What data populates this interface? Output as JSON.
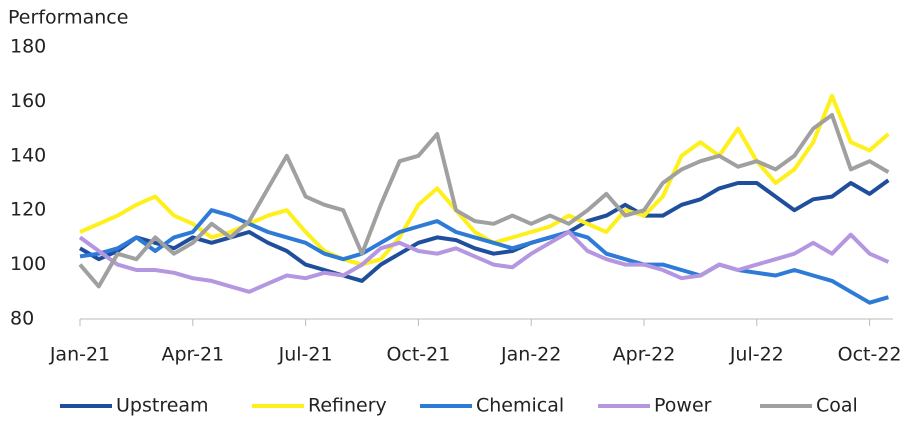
{
  "chart_data": {
    "type": "line",
    "y_label": "Performance",
    "categories": [
      "Jan-21",
      null,
      null,
      null,
      null,
      null,
      "Apr-21",
      null,
      null,
      null,
      null,
      null,
      "Jul-21",
      null,
      null,
      null,
      null,
      null,
      "Oct-21",
      null,
      null,
      null,
      null,
      null,
      "Jan-22",
      null,
      null,
      null,
      null,
      null,
      "Apr-22",
      null,
      null,
      null,
      null,
      null,
      "Jul-22",
      null,
      null,
      null,
      null,
      null,
      "Oct-22",
      null
    ],
    "ylim": [
      80,
      180
    ],
    "yticks": [
      80,
      100,
      120,
      140,
      160,
      180
    ],
    "grid": false,
    "legend": "bottom",
    "series": [
      {
        "name": "Upstream",
        "color": "#1f4e9c",
        "values": [
          106,
          102,
          105,
          110,
          108,
          106,
          110,
          108,
          110,
          112,
          108,
          105,
          100,
          98,
          96,
          94,
          100,
          104,
          108,
          110,
          109,
          106,
          104,
          105,
          108,
          110,
          112,
          116,
          118,
          122,
          118,
          118,
          122,
          124,
          128,
          130,
          130,
          125,
          120,
          124,
          125,
          130,
          126,
          131
        ]
      },
      {
        "name": "Refinery",
        "color": "#ffef1a",
        "values": [
          112,
          115,
          118,
          122,
          125,
          118,
          115,
          110,
          112,
          115,
          118,
          120,
          112,
          105,
          102,
          100,
          102,
          110,
          122,
          128,
          120,
          112,
          108,
          110,
          112,
          114,
          118,
          115,
          112,
          120,
          118,
          125,
          140,
          145,
          140,
          150,
          138,
          130,
          135,
          145,
          162,
          145,
          142,
          148
        ]
      },
      {
        "name": "Chemical",
        "color": "#2d7bd6",
        "values": [
          103,
          104,
          106,
          110,
          105,
          110,
          112,
          120,
          118,
          115,
          112,
          110,
          108,
          104,
          102,
          104,
          108,
          112,
          114,
          116,
          112,
          110,
          108,
          106,
          108,
          110,
          112,
          110,
          104,
          102,
          100,
          100,
          98,
          96,
          100,
          98,
          97,
          96,
          98,
          96,
          94,
          90,
          86,
          88
        ]
      },
      {
        "name": "Power",
        "color": "#b596e0",
        "values": [
          110,
          105,
          100,
          98,
          98,
          97,
          95,
          94,
          92,
          90,
          93,
          96,
          95,
          97,
          96,
          100,
          106,
          108,
          105,
          104,
          106,
          103,
          100,
          99,
          104,
          108,
          112,
          105,
          102,
          100,
          100,
          98,
          95,
          96,
          100,
          98,
          100,
          102,
          104,
          108,
          104,
          111,
          104,
          101
        ]
      },
      {
        "name": "Coal",
        "color": "#a0a0a0",
        "values": [
          100,
          92,
          104,
          102,
          110,
          104,
          108,
          115,
          110,
          116,
          128,
          140,
          125,
          122,
          120,
          104,
          122,
          138,
          140,
          148,
          120,
          116,
          115,
          118,
          115,
          118,
          115,
          120,
          126,
          118,
          120,
          130,
          135,
          138,
          140,
          136,
          138,
          135,
          140,
          150,
          155,
          135,
          138,
          134
        ]
      }
    ]
  }
}
